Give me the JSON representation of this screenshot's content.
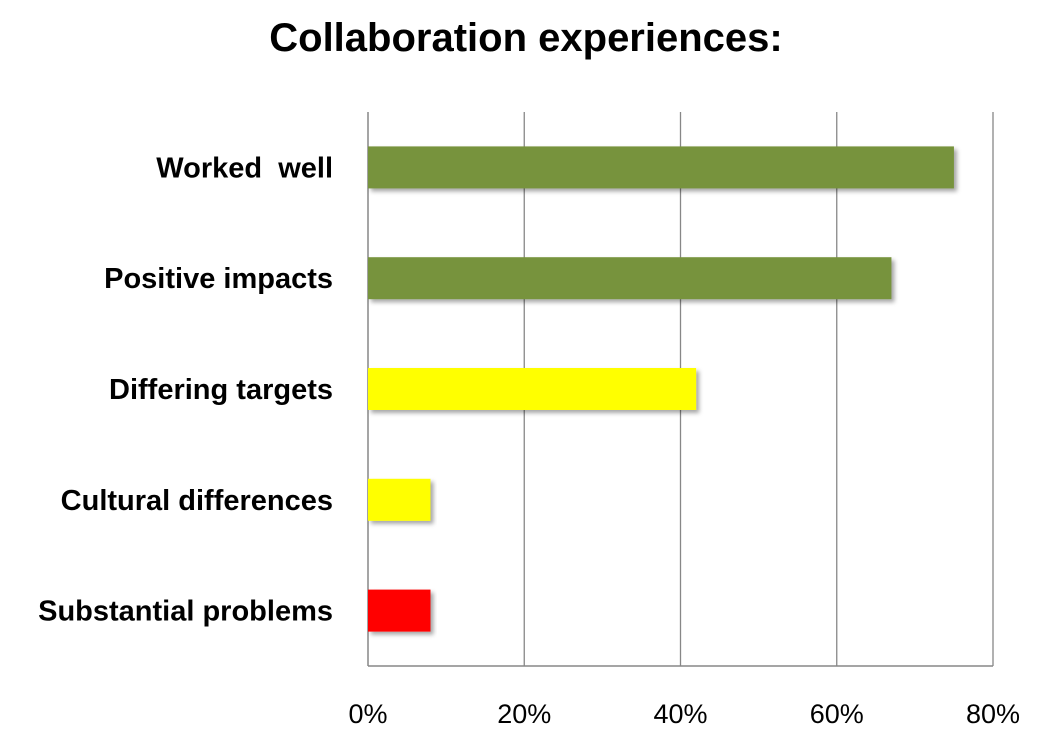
{
  "chart_data": {
    "type": "bar",
    "orientation": "horizontal",
    "title": "Collaboration experiences:",
    "categories": [
      "Worked  well",
      "Positive impacts",
      "Differing targets",
      "Cultural differences",
      "Substantial problems"
    ],
    "values": [
      75,
      67,
      42,
      8,
      8
    ],
    "unit": "%",
    "bar_colors": [
      "#77933c",
      "#77933c",
      "#ffff00",
      "#ffff00",
      "#ff0000"
    ],
    "xlim": [
      0,
      80
    ],
    "xticks": [
      "0%",
      "20%",
      "40%",
      "60%",
      "80%"
    ],
    "grid": true,
    "legend": "none"
  }
}
